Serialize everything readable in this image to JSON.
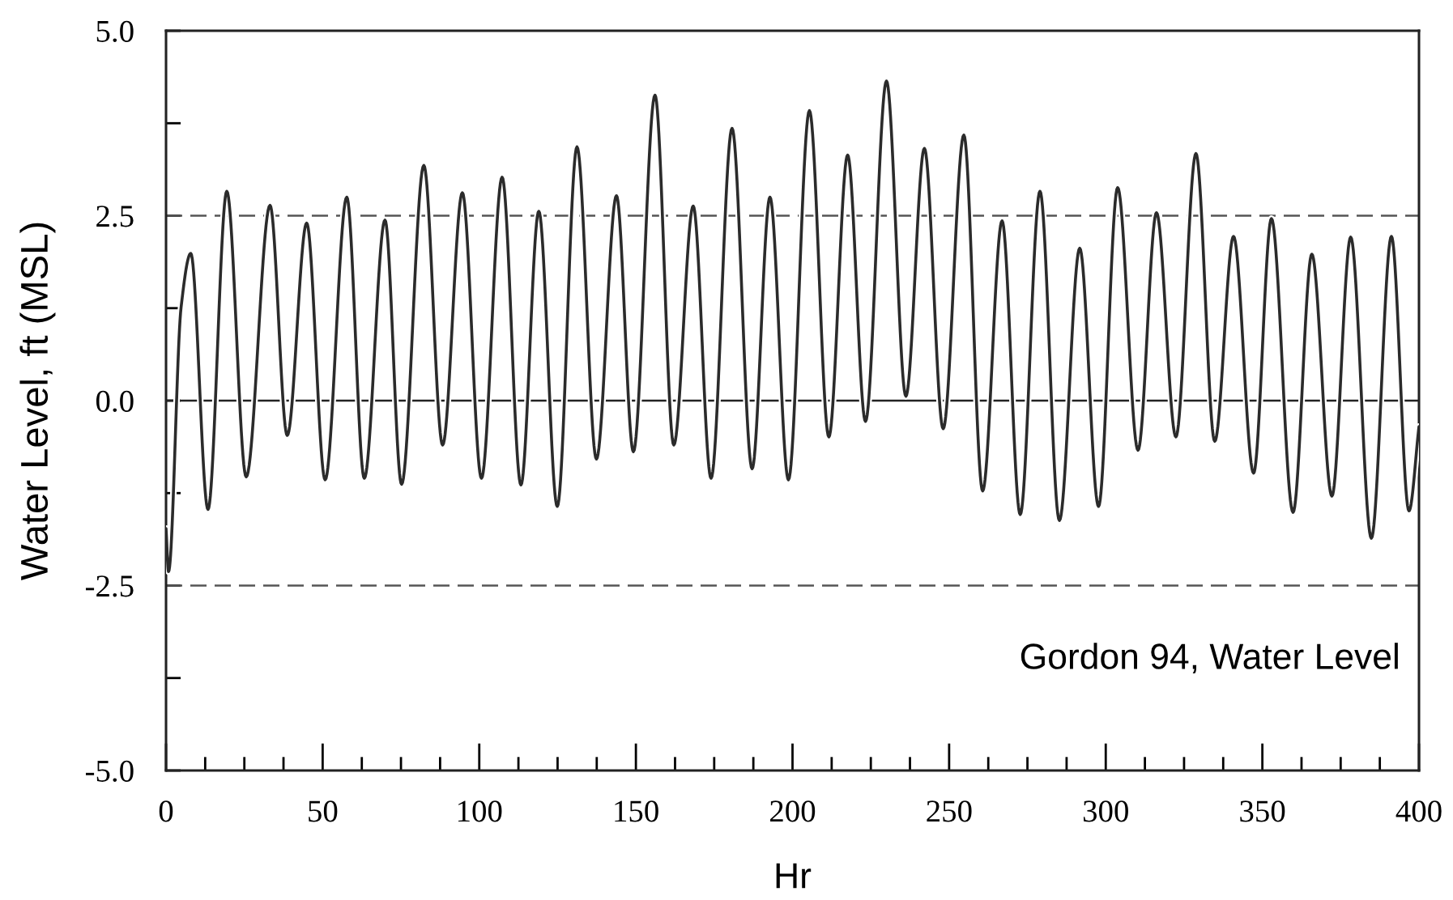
{
  "chart_data": {
    "type": "line",
    "xlabel": "Hr",
    "ylabel": "Water Level, ft (MSL)",
    "annotations": [
      "Gordon 94, Water Level"
    ],
    "series": [
      {
        "color": "#2b2b2b",
        "x": [
          0,
          0.8,
          4.8,
          7.9,
          13.4,
          19.4,
          25.6,
          33.2,
          38.7,
          44.9,
          50.8,
          57.7,
          63.3,
          69.9,
          75.2,
          82.3,
          88.3,
          94.6,
          100.7,
          107.3,
          113.3,
          119.0,
          124.9,
          131.2,
          137.4,
          143.8,
          149.2,
          156.1,
          162.1,
          168.3,
          174.0,
          180.7,
          187.1,
          192.8,
          198.7,
          205.4,
          211.6,
          217.6,
          223.3,
          230.0,
          236.2,
          242.1,
          248.1,
          254.7,
          260.7,
          266.9,
          272.7,
          279.0,
          285.2,
          291.7,
          297.7,
          303.8,
          310.3,
          316.2,
          322.4,
          328.8,
          334.8,
          340.8,
          347.2,
          352.9,
          359.8,
          365.8,
          372.2,
          378.2,
          384.8,
          391.2,
          396.8,
          400
        ],
        "values": [
          -1.73,
          -2.31,
          1.26,
          1.99,
          -1.47,
          2.83,
          -1.03,
          2.64,
          -0.47,
          2.4,
          -1.07,
          2.75,
          -1.05,
          2.44,
          -1.13,
          3.18,
          -0.6,
          2.81,
          -1.05,
          3.02,
          -1.14,
          2.56,
          -1.43,
          3.43,
          -0.79,
          2.77,
          -0.69,
          4.13,
          -0.6,
          2.63,
          -1.05,
          3.68,
          -0.92,
          2.75,
          -1.07,
          3.92,
          -0.49,
          3.32,
          -0.28,
          4.32,
          0.06,
          3.41,
          -0.38,
          3.59,
          -1.22,
          2.43,
          -1.54,
          2.83,
          -1.62,
          2.06,
          -1.43,
          2.88,
          -0.67,
          2.54,
          -0.49,
          3.34,
          -0.55,
          2.22,
          -0.98,
          2.46,
          -1.51,
          1.98,
          -1.29,
          2.21,
          -1.86,
          2.22,
          -1.49,
          -0.35
        ]
      }
    ],
    "xlim": [
      0,
      400
    ],
    "ylim": [
      -5,
      5
    ],
    "xticks": [
      0,
      {
        "value": 12.5,
        "label": null
      },
      {
        "value": 25,
        "label": null
      },
      {
        "value": 37.5,
        "label": null
      },
      50,
      {
        "value": 62.5,
        "label": null
      },
      {
        "value": 75,
        "label": null
      },
      {
        "value": 87.5,
        "label": null
      },
      100,
      {
        "value": 112.5,
        "label": null
      },
      {
        "value": 125,
        "label": null
      },
      {
        "value": 137.5,
        "label": null
      },
      150,
      {
        "value": 162.5,
        "label": null
      },
      {
        "value": 175,
        "label": null
      },
      {
        "value": 187.5,
        "label": null
      },
      200,
      {
        "value": 212.5,
        "label": null
      },
      {
        "value": 225,
        "label": null
      },
      {
        "value": 237.5,
        "label": null
      },
      250,
      {
        "value": 262.5,
        "label": null
      },
      {
        "value": 275,
        "label": null
      },
      {
        "value": 287.5,
        "label": null
      },
      300,
      {
        "value": 312.5,
        "label": null
      },
      {
        "value": 325,
        "label": null
      },
      {
        "value": 337.5,
        "label": null
      },
      350,
      {
        "value": 362.5,
        "label": null
      },
      {
        "value": 375,
        "label": null
      },
      {
        "value": 387.5,
        "label": null
      },
      400
    ],
    "yticks": [
      {
        "value": -5,
        "label": "-5.0"
      },
      {
        "value": -3.75,
        "label": null
      },
      {
        "value": -2.5,
        "label": "-2.5"
      },
      {
        "value": -1.25,
        "label": null
      },
      {
        "value": 0,
        "label": "0.0"
      },
      {
        "value": 1.25,
        "label": null
      },
      {
        "value": 2.5,
        "label": "2.5"
      },
      {
        "value": 3.75,
        "label": null
      },
      {
        "value": 5,
        "label": "5.0"
      }
    ],
    "ref_lines": [
      {
        "axis": "y",
        "value": 2.5,
        "color": "#555555",
        "line_style": "dashed"
      },
      {
        "axis": "y",
        "value": 0,
        "color": "#222222",
        "line_style": "solid"
      },
      {
        "axis": "y",
        "value": -2.5,
        "color": "#555555",
        "line_style": "dashed"
      }
    ]
  }
}
